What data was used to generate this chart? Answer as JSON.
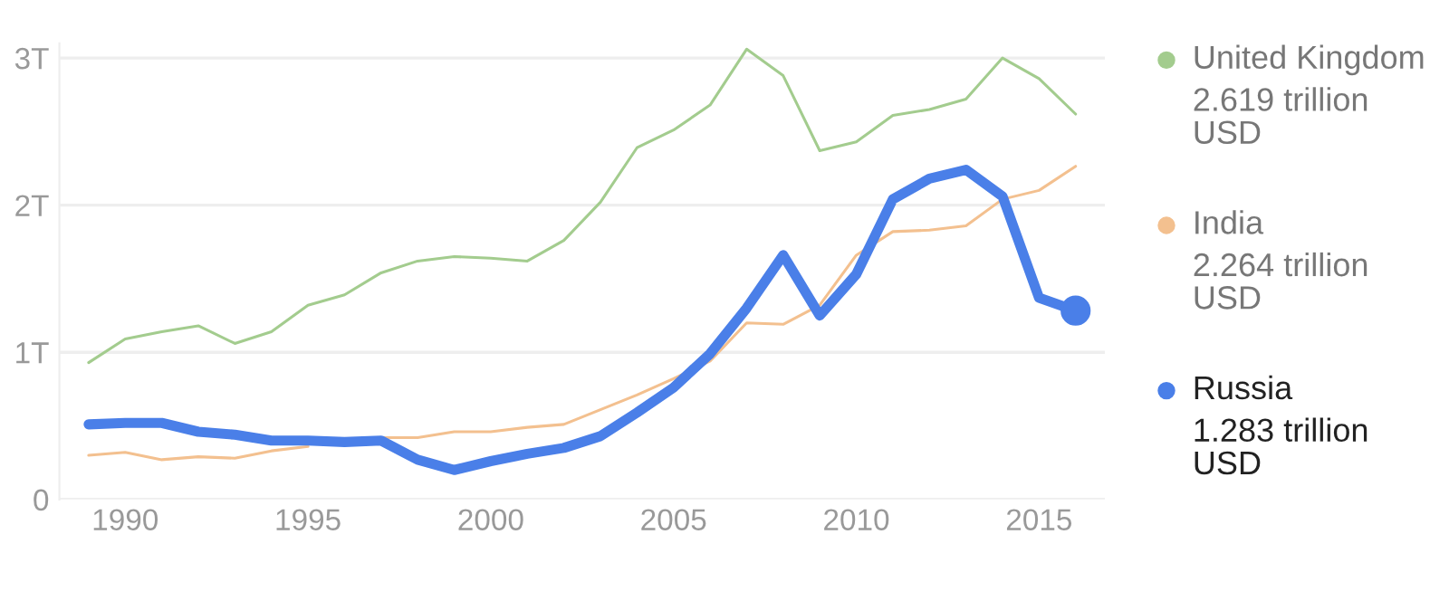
{
  "chart_data": {
    "type": "line",
    "x": [
      1989,
      1990,
      1991,
      1992,
      1993,
      1994,
      1995,
      1996,
      1997,
      1998,
      1999,
      2000,
      2001,
      2002,
      2003,
      2004,
      2005,
      2006,
      2007,
      2008,
      2009,
      2010,
      2011,
      2012,
      2013,
      2014,
      2015,
      2016
    ],
    "series": [
      {
        "name": "United Kingdom",
        "color": "#a3cc8e",
        "values": [
          0.93,
          1.09,
          1.14,
          1.18,
          1.06,
          1.14,
          1.32,
          1.39,
          1.54,
          1.62,
          1.65,
          1.64,
          1.62,
          1.76,
          2.02,
          2.39,
          2.51,
          2.68,
          3.06,
          2.88,
          2.37,
          2.43,
          2.61,
          2.65,
          2.72,
          3.0,
          2.86,
          2.619
        ]
      },
      {
        "name": "India",
        "color": "#f3c08f",
        "values": [
          0.3,
          0.32,
          0.27,
          0.29,
          0.28,
          0.33,
          0.36,
          null,
          0.42,
          0.42,
          0.46,
          0.46,
          0.49,
          0.51,
          0.61,
          0.71,
          0.82,
          0.94,
          1.2,
          1.19,
          1.32,
          1.66,
          1.82,
          1.83,
          1.86,
          2.04,
          2.1,
          2.264
        ]
      },
      {
        "name": "Russia",
        "color": "#4a7fe8",
        "values": [
          0.51,
          0.52,
          0.52,
          0.46,
          0.44,
          0.4,
          0.4,
          0.39,
          0.4,
          0.27,
          0.2,
          0.26,
          0.31,
          0.35,
          0.43,
          0.59,
          0.76,
          0.99,
          1.3,
          1.66,
          1.25,
          1.53,
          2.04,
          2.18,
          2.24,
          2.06,
          1.37,
          1.283
        ]
      },
      {
        "type": "scatter",
        "color": "#4a7fe8",
        "marker": "circle",
        "x": [
          2016
        ],
        "values": [
          1.283
        ]
      }
    ],
    "annotations": [
      "2.619 trillion USD",
      "2.264 trillion USD",
      "1.283 trillion USD"
    ],
    "xlim": [
      1988.2,
      2016.8
    ],
    "xticks": [
      1990,
      1995,
      2000,
      2005,
      2010,
      2015
    ],
    "ylim": [
      0,
      3.1
    ],
    "yticks": [
      {
        "value": 0,
        "label": "0"
      },
      {
        "value": 1,
        "label": "1T"
      },
      {
        "value": 2,
        "label": "2T"
      },
      {
        "value": 3,
        "label": "3T"
      }
    ],
    "grid": "y",
    "legend": "right"
  }
}
